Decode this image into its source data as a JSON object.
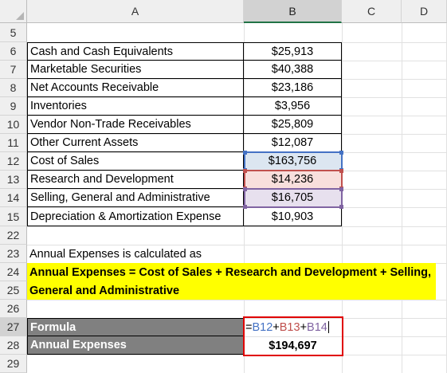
{
  "columns": [
    "A",
    "B",
    "C",
    "D"
  ],
  "selected_column": "B",
  "rows": [
    {
      "n": "5"
    },
    {
      "n": "6"
    },
    {
      "n": "7"
    },
    {
      "n": "8"
    },
    {
      "n": "9"
    },
    {
      "n": "10"
    },
    {
      "n": "11"
    },
    {
      "n": "12"
    },
    {
      "n": "13"
    },
    {
      "n": "14"
    },
    {
      "n": "15"
    },
    {
      "n": "22"
    },
    {
      "n": "23"
    },
    {
      "n": "24"
    },
    {
      "n": "25"
    },
    {
      "n": "26"
    },
    {
      "n": "27"
    },
    {
      "n": "28"
    },
    {
      "n": "29"
    }
  ],
  "selected_row": "27",
  "items": [
    {
      "label": "Cash and Cash Equivalents",
      "value": "$25,913"
    },
    {
      "label": "Marketable Securities",
      "value": "$40,388"
    },
    {
      "label": "Net Accounts Receivable",
      "value": "$23,186"
    },
    {
      "label": "Inventories",
      "value": "$3,956"
    },
    {
      "label": "Vendor Non-Trade Receivables",
      "value": "$25,809"
    },
    {
      "label": "Other Current Assets",
      "value": "$12,087"
    },
    {
      "label": "Cost of Sales",
      "value": "$163,756"
    },
    {
      "label": "Research and Development",
      "value": "$14,236"
    },
    {
      "label": "Selling, General and Administrative",
      "value": "$16,705"
    },
    {
      "label": "Depreciation & Amortization Expense",
      "value": "$10,903"
    }
  ],
  "note": "Annual Expenses  is calculated as",
  "definition": {
    "line1": "Annual Expenses = Cost of Sales + Research and Development + Selling,",
    "line2": "General and Administrative"
  },
  "formula_label": "Formula",
  "formula_parts": [
    "=",
    "B12",
    "+",
    "B13",
    "+",
    "B14"
  ],
  "result_label": "Annual Expenses",
  "result_value": "$194,697",
  "colors": {
    "ref_b12": "#4472c4",
    "ref_b13": "#c0504d",
    "ref_b14": "#8064a2",
    "highlight_yellow": "#ffff00",
    "label_grey": "#808080",
    "result_border": "#e00000"
  }
}
